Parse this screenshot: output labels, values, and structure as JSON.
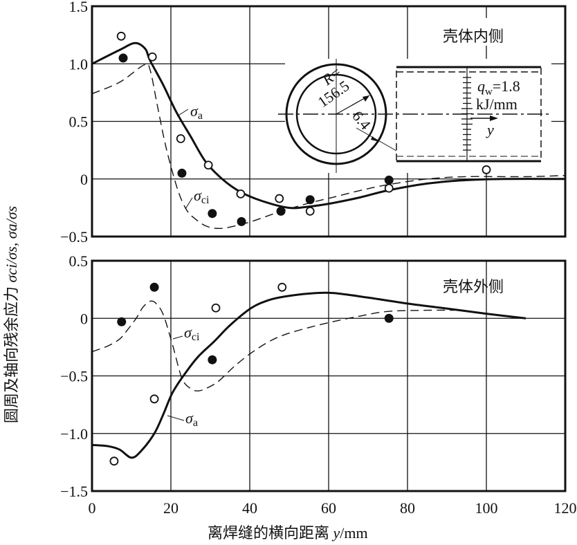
{
  "chart_data": [
    {
      "type": "line",
      "title": "壳体内侧",
      "xlim": [
        0,
        120
      ],
      "ylim": [
        -0.5,
        1.5
      ],
      "x_ticks": [
        "0",
        "20",
        "40",
        "60",
        "80",
        "100",
        "120"
      ],
      "y_ticks": [
        "1.5",
        "1.0",
        "0.5",
        "0",
        "−0.5"
      ],
      "y_tick_values": [
        1.5,
        1.0,
        0.5,
        0,
        -0.5
      ],
      "grid": true,
      "series": [
        {
          "name": "σa",
          "style": "solid",
          "points": [
            [
              0,
              1.0
            ],
            [
              7,
              1.12
            ],
            [
              10.9,
              1.18
            ],
            [
              13.5,
              1.13
            ],
            [
              14.7,
              1.03
            ],
            [
              18,
              0.82
            ],
            [
              21.4,
              0.58
            ],
            [
              25,
              0.37
            ],
            [
              28.8,
              0.15
            ],
            [
              33,
              0.0
            ],
            [
              37.5,
              -0.11
            ],
            [
              43,
              -0.19
            ],
            [
              49.8,
              -0.25
            ],
            [
              55,
              -0.24
            ],
            [
              60.9,
              -0.21
            ],
            [
              68,
              -0.16
            ],
            [
              75,
              -0.1
            ],
            [
              85,
              -0.04
            ],
            [
              95,
              -0.01
            ],
            [
              105,
              0.0
            ],
            [
              120,
              0.0
            ]
          ]
        },
        {
          "name": "σci",
          "style": "dashed",
          "points": [
            [
              0,
              0.74
            ],
            [
              7,
              0.84
            ],
            [
              13.2,
              0.99
            ],
            [
              14.7,
              0.95
            ],
            [
              16.5,
              0.65
            ],
            [
              18.8,
              0.27
            ],
            [
              21.7,
              -0.09
            ],
            [
              24,
              -0.27
            ],
            [
              26.3,
              -0.35
            ],
            [
              29,
              -0.41
            ],
            [
              32.2,
              -0.43
            ],
            [
              36,
              -0.41
            ],
            [
              40.4,
              -0.37
            ],
            [
              48,
              -0.28
            ],
            [
              55,
              -0.21
            ],
            [
              61,
              -0.16
            ],
            [
              68,
              -0.1
            ],
            [
              75,
              -0.05
            ],
            [
              85,
              0.0
            ],
            [
              95,
              0.02
            ],
            [
              110,
              0.02
            ],
            [
              120,
              0.03
            ]
          ]
        }
      ],
      "markers": {
        "open": [
          [
            7.4,
            1.24
          ],
          [
            15.3,
            1.06
          ],
          [
            22.5,
            0.35
          ],
          [
            29.5,
            0.12
          ],
          [
            37.7,
            -0.13
          ],
          [
            47.5,
            -0.17
          ],
          [
            55.3,
            -0.28
          ],
          [
            75.3,
            -0.08
          ],
          [
            100,
            0.08
          ]
        ],
        "filled": [
          [
            7.9,
            1.05
          ],
          [
            22.8,
            0.05
          ],
          [
            30.5,
            -0.3
          ],
          [
            37.9,
            -0.37
          ],
          [
            47.9,
            -0.28
          ],
          [
            55.3,
            -0.18
          ],
          [
            75.3,
            -0.01
          ]
        ]
      },
      "annotations": {
        "sigma_a": "σ",
        "sigma_a_sub": "a",
        "sigma_ci": "σ",
        "sigma_ci_sub": "ci"
      }
    },
    {
      "type": "line",
      "title": "壳体外侧",
      "xlim": [
        0,
        120
      ],
      "ylim": [
        -1.5,
        0.5
      ],
      "y_ticks": [
        "0.5",
        "0",
        "−0.5",
        "−1.0",
        "−1.5"
      ],
      "y_tick_values": [
        0.5,
        0,
        -0.5,
        -1.0,
        -1.5
      ],
      "grid": true,
      "series": [
        {
          "name": "σa",
          "style": "solid",
          "points": [
            [
              0,
              -1.1
            ],
            [
              4,
              -1.11
            ],
            [
              7,
              -1.14
            ],
            [
              10,
              -1.21
            ],
            [
              12.5,
              -1.15
            ],
            [
              15.8,
              -1.0
            ],
            [
              18,
              -0.84
            ],
            [
              20.5,
              -0.64
            ],
            [
              24,
              -0.46
            ],
            [
              27,
              -0.33
            ],
            [
              31,
              -0.2
            ],
            [
              35,
              -0.06
            ],
            [
              40.4,
              0.09
            ],
            [
              45,
              0.16
            ],
            [
              49,
              0.19
            ],
            [
              55,
              0.215
            ],
            [
              61,
              0.22
            ],
            [
              70,
              0.18
            ],
            [
              79.6,
              0.13
            ],
            [
              90,
              0.085
            ],
            [
              100,
              0.04
            ],
            [
              110,
              0.0
            ]
          ]
        },
        {
          "name": "σci",
          "style": "dashed",
          "points": [
            [
              0,
              -0.29
            ],
            [
              4,
              -0.24
            ],
            [
              7,
              -0.18
            ],
            [
              9,
              -0.1
            ],
            [
              11.2,
              0.0
            ],
            [
              13,
              0.1
            ],
            [
              14.9,
              0.15
            ],
            [
              16.5,
              0.12
            ],
            [
              18.2,
              0.02
            ],
            [
              20.5,
              -0.24
            ],
            [
              22.8,
              -0.52
            ],
            [
              25,
              -0.61
            ],
            [
              27,
              -0.63
            ],
            [
              29.5,
              -0.6
            ],
            [
              32.3,
              -0.54
            ],
            [
              36,
              -0.42
            ],
            [
              40.4,
              -0.3
            ],
            [
              45,
              -0.2
            ],
            [
              49,
              -0.14
            ],
            [
              55,
              -0.08
            ],
            [
              61,
              -0.03
            ],
            [
              68,
              0.02
            ],
            [
              75,
              0.06
            ],
            [
              85,
              0.07
            ],
            [
              92,
              0.07
            ]
          ]
        }
      ],
      "markers": {
        "open": [
          [
            5.6,
            -1.24
          ],
          [
            15.8,
            -0.7
          ],
          [
            31.4,
            0.09
          ],
          [
            48.2,
            0.27
          ]
        ],
        "filled": [
          [
            7.5,
            -0.03
          ],
          [
            15.8,
            0.27
          ],
          [
            30.5,
            -0.36
          ],
          [
            75.3,
            0.0
          ]
        ]
      },
      "annotations": {
        "sigma_a": "σ",
        "sigma_a_sub": "a",
        "sigma_ci": "σ",
        "sigma_ci_sub": "ci"
      }
    }
  ],
  "axes": {
    "ylabel_prefix": "圆周及轴向残余应力 ",
    "ylabel_math": "σci/σs, σa/σs",
    "xlabel_prefix": "离焊缝的横向距离 ",
    "xlabel_var": "y",
    "xlabel_unit": "/mm"
  },
  "inset": {
    "radius_label": "R=",
    "radius_value": "156.5",
    "thickness": "6.4",
    "q_symbol": "q",
    "q_sub": "w",
    "q_value": "=1.8",
    "q_unit": "kJ/mm",
    "axis_label": "y"
  }
}
